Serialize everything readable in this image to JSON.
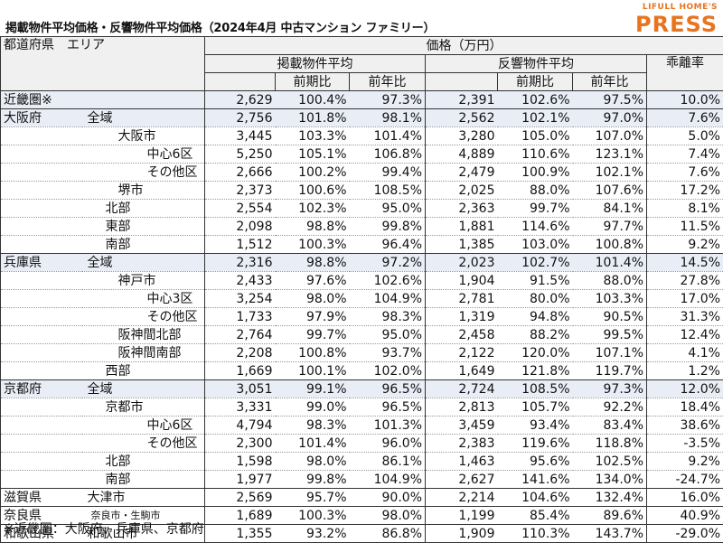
{
  "title": "掲載物件平均価格・反響物件平均価格（2024年4月 中古マンション ファミリー）",
  "logo": {
    "line1": "LIFULL HOME'S",
    "line2": "PRESS",
    "color": "#e8741e"
  },
  "headers": {
    "pref_area": "都道府県　エリア",
    "price": "価格（万円）",
    "listing_avg": "掲載物件平均",
    "response_avg": "反響物件平均",
    "divergence": "乖離率",
    "qoq": "前期比",
    "yoy": "前年比"
  },
  "rows": [
    {
      "pref": "近畿圏※",
      "area": "",
      "l": "2,629",
      "lq": "100.4%",
      "ly": "97.3%",
      "r": "2,391",
      "rq": "102.6%",
      "ry": "97.5%",
      "d": "10.0%"
    },
    {
      "pref": "大阪府",
      "area": "全域",
      "l": "2,756",
      "lq": "101.8%",
      "ly": "98.1%",
      "r": "2,562",
      "rq": "102.1%",
      "ry": "97.0%",
      "d": "7.6%"
    },
    {
      "pref": "",
      "area": "大阪市",
      "l": "3,445",
      "lq": "103.3%",
      "ly": "101.4%",
      "r": "3,280",
      "rq": "105.0%",
      "ry": "107.0%",
      "d": "5.0%"
    },
    {
      "pref": "",
      "area": "中心6区",
      "l": "5,250",
      "lq": "105.1%",
      "ly": "106.8%",
      "r": "4,889",
      "rq": "110.6%",
      "ry": "123.1%",
      "d": "7.4%"
    },
    {
      "pref": "",
      "area": "その他区",
      "l": "2,666",
      "lq": "100.2%",
      "ly": "99.4%",
      "r": "2,479",
      "rq": "100.9%",
      "ry": "102.1%",
      "d": "7.6%"
    },
    {
      "pref": "",
      "area": "堺市",
      "l": "2,373",
      "lq": "100.6%",
      "ly": "108.5%",
      "r": "2,025",
      "rq": "88.0%",
      "ry": "107.6%",
      "d": "17.2%"
    },
    {
      "pref": "",
      "area": "北部",
      "l": "2,554",
      "lq": "102.3%",
      "ly": "95.0%",
      "r": "2,363",
      "rq": "99.7%",
      "ry": "84.1%",
      "d": "8.1%"
    },
    {
      "pref": "",
      "area": "東部",
      "l": "2,098",
      "lq": "98.8%",
      "ly": "99.8%",
      "r": "1,881",
      "rq": "114.6%",
      "ry": "97.7%",
      "d": "11.5%"
    },
    {
      "pref": "",
      "area": "南部",
      "l": "1,512",
      "lq": "100.3%",
      "ly": "96.4%",
      "r": "1,385",
      "rq": "103.0%",
      "ry": "100.8%",
      "d": "9.2%"
    },
    {
      "pref": "兵庫県",
      "area": "全域",
      "l": "2,316",
      "lq": "98.8%",
      "ly": "97.2%",
      "r": "2,023",
      "rq": "102.7%",
      "ry": "101.4%",
      "d": "14.5%"
    },
    {
      "pref": "",
      "area": "神戸市",
      "l": "2,433",
      "lq": "97.6%",
      "ly": "102.6%",
      "r": "1,904",
      "rq": "91.5%",
      "ry": "88.0%",
      "d": "27.8%"
    },
    {
      "pref": "",
      "area": "中心3区",
      "l": "3,254",
      "lq": "98.0%",
      "ly": "104.9%",
      "r": "2,781",
      "rq": "80.0%",
      "ry": "103.3%",
      "d": "17.0%"
    },
    {
      "pref": "",
      "area": "その他区",
      "l": "1,733",
      "lq": "97.9%",
      "ly": "98.3%",
      "r": "1,319",
      "rq": "94.8%",
      "ry": "90.5%",
      "d": "31.3%"
    },
    {
      "pref": "",
      "area": "阪神間北部",
      "l": "2,764",
      "lq": "99.7%",
      "ly": "95.0%",
      "r": "2,458",
      "rq": "88.2%",
      "ry": "99.5%",
      "d": "12.4%"
    },
    {
      "pref": "",
      "area": "阪神間南部",
      "l": "2,208",
      "lq": "100.8%",
      "ly": "93.7%",
      "r": "2,122",
      "rq": "120.0%",
      "ry": "107.1%",
      "d": "4.1%"
    },
    {
      "pref": "",
      "area": "西部",
      "l": "1,669",
      "lq": "100.1%",
      "ly": "102.0%",
      "r": "1,649",
      "rq": "121.8%",
      "ry": "119.7%",
      "d": "1.2%"
    },
    {
      "pref": "京都府",
      "area": "全域",
      "l": "3,051",
      "lq": "99.1%",
      "ly": "96.5%",
      "r": "2,724",
      "rq": "108.5%",
      "ry": "97.3%",
      "d": "12.0%"
    },
    {
      "pref": "",
      "area": "京都市",
      "l": "3,331",
      "lq": "99.0%",
      "ly": "96.5%",
      "r": "2,813",
      "rq": "105.7%",
      "ry": "92.2%",
      "d": "18.4%"
    },
    {
      "pref": "",
      "area": "中心6区",
      "l": "4,794",
      "lq": "98.3%",
      "ly": "101.3%",
      "r": "3,459",
      "rq": "93.4%",
      "ry": "83.4%",
      "d": "38.6%"
    },
    {
      "pref": "",
      "area": "その他区",
      "l": "2,300",
      "lq": "101.4%",
      "ly": "96.0%",
      "r": "2,383",
      "rq": "119.6%",
      "ry": "118.8%",
      "d": "-3.5%"
    },
    {
      "pref": "",
      "area": "北部",
      "l": "1,598",
      "lq": "98.0%",
      "ly": "86.1%",
      "r": "1,463",
      "rq": "95.6%",
      "ry": "102.5%",
      "d": "9.2%"
    },
    {
      "pref": "",
      "area": "南部",
      "l": "1,977",
      "lq": "99.8%",
      "ly": "104.9%",
      "r": "2,627",
      "rq": "141.6%",
      "ry": "134.0%",
      "d": "-24.7%"
    },
    {
      "pref": "滋賀県",
      "area": "大津市",
      "l": "2,569",
      "lq": "95.7%",
      "ly": "90.0%",
      "r": "2,214",
      "rq": "104.6%",
      "ry": "132.4%",
      "d": "16.0%"
    },
    {
      "pref": "奈良県",
      "area": "奈良市・生駒市",
      "l": "1,689",
      "lq": "100.3%",
      "ly": "98.0%",
      "r": "1,199",
      "rq": "85.4%",
      "ry": "89.6%",
      "d": "40.9%"
    },
    {
      "pref": "和歌山県",
      "area": "和歌山市",
      "l": "1,355",
      "lq": "93.2%",
      "ly": "86.8%",
      "r": "1,909",
      "rq": "110.3%",
      "ry": "143.7%",
      "d": "-29.0%"
    }
  ],
  "footnote": "※近畿圏：大阪府、兵庫県、京都府"
}
